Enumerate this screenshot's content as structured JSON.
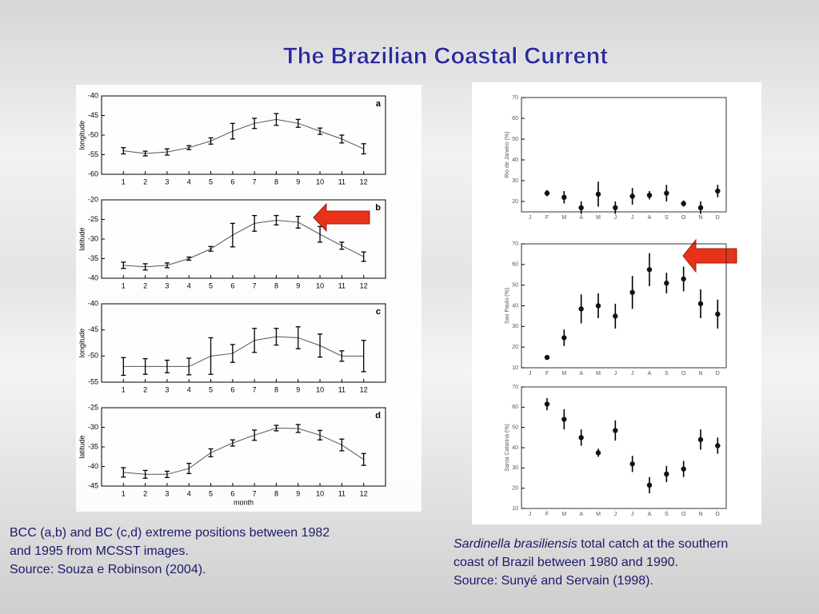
{
  "title": "The Brazilian Coastal Current",
  "chart_data": [
    {
      "type": "line",
      "panel_label": "a",
      "y_label": "longitude",
      "x": [
        1,
        2,
        3,
        4,
        5,
        6,
        7,
        8,
        9,
        10,
        11,
        12
      ],
      "xlim": [
        0,
        13
      ],
      "xticks": [
        1,
        2,
        3,
        4,
        5,
        6,
        7,
        8,
        9,
        10,
        11,
        12
      ],
      "ylim": [
        -60,
        -40
      ],
      "yticks": [
        -60,
        -55,
        -50,
        -45,
        -40
      ],
      "color": "#555555",
      "series": [
        {
          "values": [
            -54,
            -54.7,
            -54.3,
            -53.2,
            -51.5,
            -49,
            -47,
            -46,
            -47,
            -49,
            -51,
            -53.5
          ],
          "errors": [
            0.8,
            0.6,
            0.8,
            0.5,
            0.8,
            2,
            1.3,
            1.5,
            1,
            0.8,
            1,
            1.3
          ]
        }
      ]
    },
    {
      "type": "line",
      "panel_label": "b",
      "y_label": "latitude",
      "x": [
        1,
        2,
        3,
        4,
        5,
        6,
        7,
        8,
        9,
        10,
        11,
        12
      ],
      "xlim": [
        0,
        13
      ],
      "xticks": [
        1,
        2,
        3,
        4,
        5,
        6,
        7,
        8,
        9,
        10,
        11,
        12
      ],
      "ylim": [
        -40,
        -20
      ],
      "yticks": [
        -40,
        -35,
        -30,
        -25,
        -20
      ],
      "color": "#555555",
      "series": [
        {
          "values": [
            -36.7,
            -37.1,
            -36.7,
            -35,
            -32.5,
            -29,
            -26,
            -25.2,
            -25.7,
            -28.8,
            -31.7,
            -34.5
          ],
          "errors": [
            0.8,
            0.8,
            0.6,
            0.4,
            0.6,
            3,
            2,
            1.2,
            1.5,
            2,
            0.9,
            1.2
          ]
        }
      ]
    },
    {
      "type": "line",
      "panel_label": "c",
      "y_label": "longitude",
      "x": [
        1,
        2,
        3,
        4,
        5,
        6,
        7,
        8,
        9,
        10,
        11,
        12
      ],
      "xlim": [
        0,
        13
      ],
      "xticks": [
        1,
        2,
        3,
        4,
        5,
        6,
        7,
        8,
        9,
        10,
        11,
        12
      ],
      "ylim": [
        -55,
        -40
      ],
      "yticks": [
        -55,
        -50,
        -45,
        -40
      ],
      "color": "#555555",
      "series": [
        {
          "values": [
            -52,
            -52,
            -52,
            -52,
            -50,
            -49.5,
            -47,
            -46.3,
            -46.5,
            -48,
            -50,
            -50
          ],
          "errors": [
            1.7,
            1.5,
            1.2,
            1.6,
            3.5,
            1.7,
            2.3,
            1.6,
            2.1,
            2.2,
            1,
            3
          ]
        }
      ]
    },
    {
      "type": "line",
      "panel_label": "d",
      "y_label": "latitude",
      "x_label": "month",
      "x": [
        1,
        2,
        3,
        4,
        5,
        6,
        7,
        8,
        9,
        10,
        11,
        12
      ],
      "xlim": [
        0,
        13
      ],
      "xticks": [
        1,
        2,
        3,
        4,
        5,
        6,
        7,
        8,
        9,
        10,
        11,
        12
      ],
      "ylim": [
        -45,
        -25
      ],
      "yticks": [
        -45,
        -40,
        -35,
        -30,
        -25
      ],
      "color": "#555555",
      "series": [
        {
          "values": [
            -41.5,
            -42,
            -42,
            -40.5,
            -36.5,
            -34,
            -32,
            -30.2,
            -30.3,
            -32,
            -34.5,
            -38.2
          ],
          "errors": [
            1.2,
            1,
            0.8,
            1.3,
            1,
            0.8,
            1.3,
            0.7,
            1,
            1.2,
            1.5,
            1.5
          ]
        }
      ]
    },
    {
      "type": "dot",
      "y_label": "Rio de Janeiro (%)",
      "categories": [
        "J",
        "F",
        "M",
        "A",
        "M",
        "J",
        "J",
        "A",
        "S",
        "O",
        "N",
        "D"
      ],
      "ylim": [
        15,
        70
      ],
      "yticks": [
        20,
        30,
        40,
        50,
        60,
        70
      ],
      "color": "#111111",
      "series": [
        {
          "values": [
            null,
            24,
            22,
            17,
            23.5,
            17,
            22.5,
            23,
            24,
            19,
            17,
            25
          ],
          "errors": [
            null,
            1.5,
            3,
            3,
            6,
            3,
            4,
            2,
            4,
            1.5,
            3,
            3
          ]
        }
      ]
    },
    {
      "type": "dot",
      "y_label": "Sao Paulo (%)",
      "categories": [
        "J",
        "F",
        "M",
        "A",
        "M",
        "J",
        "J",
        "A",
        "S",
        "O",
        "N",
        "D"
      ],
      "ylim": [
        10,
        70
      ],
      "yticks": [
        10,
        20,
        30,
        40,
        50,
        60,
        70
      ],
      "color": "#111111",
      "series": [
        {
          "values": [
            null,
            15,
            24.5,
            38.5,
            40,
            35,
            46.5,
            57.5,
            51,
            53,
            41,
            36
          ],
          "errors": [
            null,
            1,
            4,
            7,
            6,
            6,
            8,
            8,
            5,
            6,
            7,
            7
          ]
        }
      ]
    },
    {
      "type": "dot",
      "y_label": "Santa Catarina (%)",
      "categories": [
        "J",
        "F",
        "M",
        "A",
        "M",
        "J",
        "J",
        "A",
        "S",
        "O",
        "N",
        "D"
      ],
      "ylim": [
        10,
        70
      ],
      "yticks": [
        10,
        20,
        30,
        40,
        50,
        60,
        70
      ],
      "color": "#111111",
      "series": [
        {
          "values": [
            null,
            61.5,
            54,
            45,
            37.5,
            48.5,
            32,
            21.5,
            27,
            29.5,
            44,
            41
          ],
          "errors": [
            null,
            3,
            5,
            4,
            2,
            5,
            4,
            4,
            4,
            4,
            5,
            4
          ]
        }
      ]
    }
  ],
  "captions": {
    "left": [
      "BCC (a,b) and BC (c,d) extreme positions between 1982",
      "and 1995 from MCSST images.",
      "Source: Souza e Robinson (2004)."
    ],
    "right": {
      "species": "Sardinella brasiliensis",
      "lines": [
        "total catch at the southern",
        "coast of Brazil between 1980 and 1990.",
        "Source: Sunyé and Servain (1998)."
      ]
    }
  }
}
